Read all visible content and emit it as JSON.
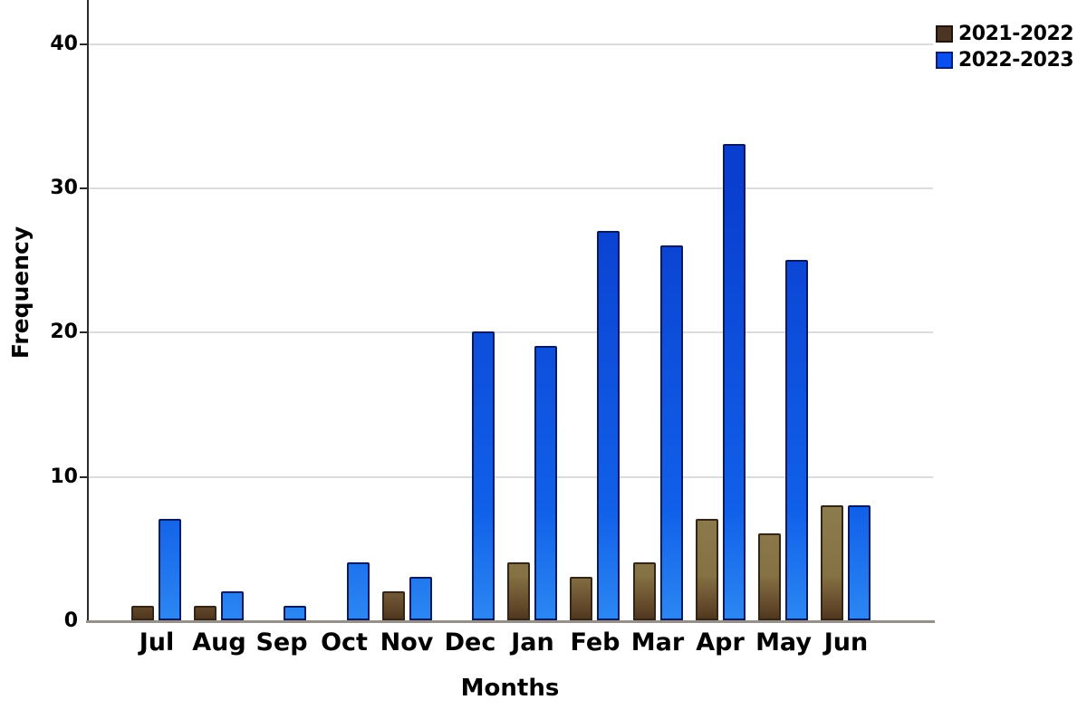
{
  "chart_data": {
    "type": "bar",
    "title": "",
    "xlabel": "Months",
    "ylabel": "Frequency",
    "categories": [
      "Jul",
      "Aug",
      "Sep",
      "Oct",
      "Nov",
      "Dec",
      "Jan",
      "Feb",
      "Mar",
      "Apr",
      "May",
      "Jun"
    ],
    "series": [
      {
        "name": "2021-2022",
        "values": [
          1,
          1,
          0,
          0,
          2,
          0,
          4,
          3,
          4,
          7,
          6,
          8
        ],
        "border_color": "#352517",
        "swatch_color": "#4c3425",
        "swatch_border": "#221405",
        "gradient": [
          [
            "#4f381f",
            "0px"
          ],
          [
            "#64492b",
            "14px"
          ],
          [
            "#857244",
            "48px"
          ],
          [
            "#8d7c4e",
            "130px"
          ]
        ]
      },
      {
        "name": "2022-2023",
        "values": [
          7,
          2,
          1,
          4,
          3,
          20,
          19,
          27,
          26,
          33,
          25,
          8
        ],
        "border_color": "#081b60",
        "swatch_color": "#0b4ff0",
        "swatch_border": "#05206e",
        "gradient": [
          [
            "#2b87f2",
            "0px"
          ],
          [
            "#1160e9",
            "120px"
          ],
          [
            "#0a3ecf",
            "480px"
          ]
        ]
      }
    ],
    "y_ticks": [
      0,
      10,
      20,
      30,
      40
    ],
    "ylim": [
      0,
      43
    ],
    "grid": "horizontal",
    "legend_position": "top-right"
  },
  "colors": {
    "background": "#ffffff",
    "gridline": "#dcdcdc",
    "axis_line": "#2b2b2b",
    "baseline": "#95908a",
    "text": "#000000"
  }
}
